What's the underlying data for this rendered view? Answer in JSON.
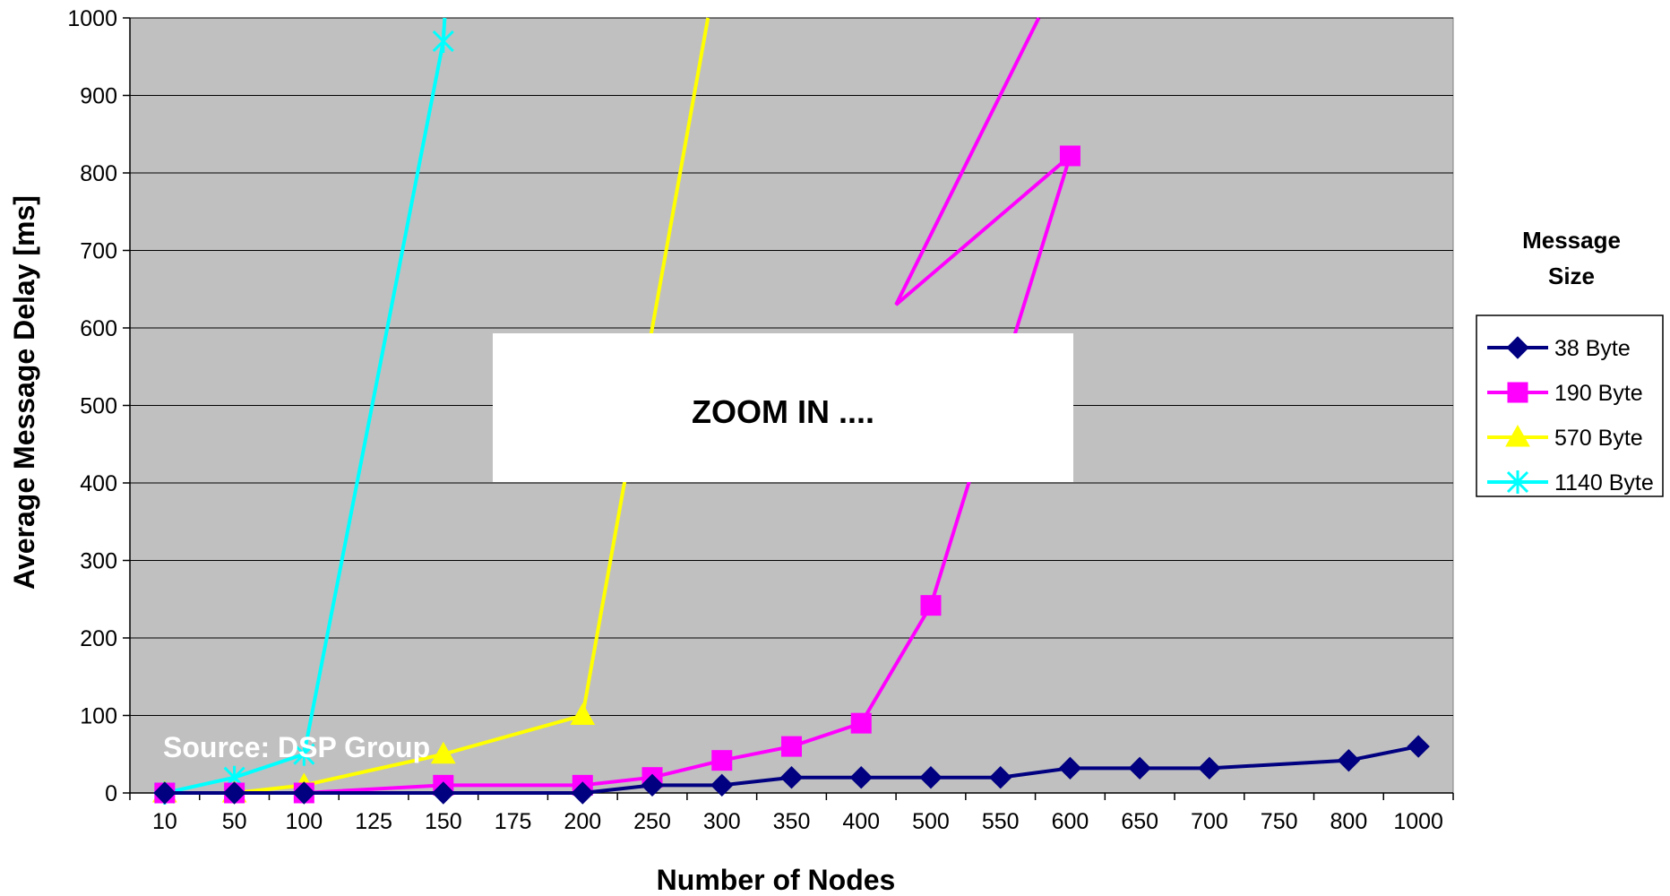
{
  "chart_data": {
    "type": "line",
    "title": "",
    "xlabel": "Number of Nodes",
    "ylabel": "Average Message Delay [ms]",
    "categories": [
      "10",
      "50",
      "100",
      "125",
      "150",
      "175",
      "200",
      "250",
      "300",
      "350",
      "400",
      "500",
      "550",
      "600",
      "650",
      "700",
      "750",
      "800",
      "1000"
    ],
    "ylim": [
      0,
      1000
    ],
    "yticks": [
      0,
      100,
      200,
      300,
      400,
      500,
      600,
      700,
      800,
      900,
      1000
    ],
    "grid": true,
    "legend_title": "Message Size",
    "legend_position": "right",
    "series": [
      {
        "name": "38 Byte",
        "color": "#000080",
        "marker": "diamond",
        "values": [
          0,
          0,
          0,
          null,
          0,
          null,
          0,
          10,
          10,
          20,
          20,
          20,
          20,
          32,
          32,
          32,
          null,
          42,
          60
        ]
      },
      {
        "name": "190 Byte",
        "color": "#FF00FF",
        "marker": "square",
        "values": [
          0,
          0,
          0,
          null,
          10,
          null,
          10,
          20,
          42,
          60,
          90,
          242,
          null,
          822,
          null,
          null,
          null,
          null,
          null
        ],
        "trend_beyond": [
          [
            10.5,
            630
          ],
          [
            12.55,
            1000
          ]
        ]
      },
      {
        "name": "570 Byte",
        "color": "#FFFF00",
        "marker": "triangle",
        "values": [
          0,
          0,
          10,
          null,
          50,
          null,
          100,
          null,
          null,
          null,
          null,
          null,
          null,
          null,
          null,
          null,
          null,
          null,
          null
        ],
        "trend_beyond": [
          [
            7.8,
            1000
          ]
        ]
      },
      {
        "name": "1140 Byte",
        "color": "#00FFFF",
        "marker": "x",
        "values": [
          0,
          20,
          50,
          null,
          970,
          null,
          null,
          null,
          null,
          null,
          null,
          null,
          null,
          null,
          null,
          null,
          null,
          null,
          null
        ],
        "trend_beyond": [
          [
            4.02,
            1000
          ]
        ]
      }
    ],
    "annotations": [
      {
        "text": "ZOOM IN ....",
        "kind": "overlay-box"
      },
      {
        "text": "Source: DSP Group",
        "kind": "watermark"
      }
    ],
    "plot_background": "#C0C0C0"
  }
}
